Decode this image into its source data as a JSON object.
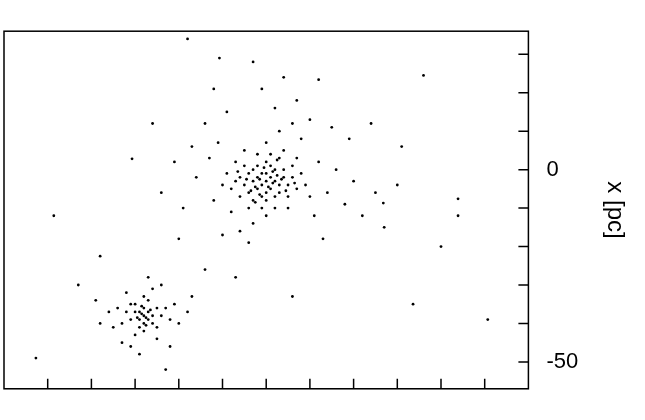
{
  "chart_data": {
    "type": "scatter",
    "ylabel": "x [pc]",
    "xlim": [
      -60,
      60
    ],
    "ylim": [
      -57,
      36
    ],
    "yticks": [
      -50,
      0
    ],
    "xminor_ticks": [
      -50,
      -40,
      -30,
      -20,
      -10,
      0,
      10,
      20,
      30,
      40,
      50
    ],
    "yminor_ticks": [
      -50,
      -40,
      -30,
      -20,
      -10,
      0,
      10,
      20,
      30
    ],
    "tick_labels": "y",
    "grid": false,
    "color": "#000000",
    "marker": "circle",
    "points": [
      [
        0,
        -3
      ],
      [
        1,
        -2
      ],
      [
        -1,
        -4
      ],
      [
        2,
        -3
      ],
      [
        -2,
        -2
      ],
      [
        0,
        -1
      ],
      [
        1,
        -5
      ],
      [
        -1,
        -1
      ],
      [
        3,
        -4
      ],
      [
        -3,
        -3
      ],
      [
        2,
        0
      ],
      [
        -2,
        -5
      ],
      [
        0,
        -6
      ],
      [
        4,
        -2
      ],
      [
        -4,
        -1
      ],
      [
        1,
        1
      ],
      [
        -1,
        -7
      ],
      [
        3,
        -6
      ],
      [
        -3,
        0
      ],
      [
        5,
        -4
      ],
      [
        -5,
        -4
      ],
      [
        2,
        -7
      ],
      [
        -2,
        1
      ],
      [
        4,
        0
      ],
      [
        -4,
        -6
      ],
      [
        6,
        -2
      ],
      [
        -6,
        -2
      ],
      [
        0,
        2
      ],
      [
        0,
        -8
      ],
      [
        5,
        -7
      ],
      [
        -5,
        1
      ],
      [
        3,
        3
      ],
      [
        -3,
        -8
      ],
      [
        7,
        -5
      ],
      [
        -7,
        -3
      ],
      [
        1,
        4
      ],
      [
        -1,
        -10
      ],
      [
        6,
        1
      ],
      [
        -6,
        -7
      ],
      [
        8,
        -1
      ],
      [
        -8,
        -5
      ],
      [
        2,
        -10
      ],
      [
        -2,
        4
      ],
      [
        9,
        -4
      ],
      [
        -9,
        -1
      ],
      [
        4,
        5
      ],
      [
        -4,
        -10
      ],
      [
        7,
        3
      ],
      [
        -7,
        2
      ],
      [
        5,
        -10
      ],
      [
        -5,
        5
      ],
      [
        10,
        -7
      ],
      [
        -10,
        -4
      ],
      [
        0,
        7
      ],
      [
        0,
        -12
      ],
      [
        1.5,
        -3.5
      ],
      [
        -1.5,
        -2.5
      ],
      [
        2.5,
        -1.5
      ],
      [
        -2.5,
        -4.5
      ],
      [
        0.5,
        -4.5
      ],
      [
        -0.5,
        0.5
      ],
      [
        3.5,
        -2.5
      ],
      [
        -3.5,
        -5.5
      ],
      [
        1.5,
        -0.5
      ],
      [
        -1.5,
        -6.5
      ],
      [
        4.5,
        -5.5
      ],
      [
        -4.5,
        -2.5
      ],
      [
        2.5,
        2.5
      ],
      [
        -2.5,
        -8.5
      ],
      [
        6.5,
        -3.5
      ],
      [
        -6.5,
        -0.5
      ],
      [
        12,
        2
      ],
      [
        -12,
        -8
      ],
      [
        8,
        8
      ],
      [
        -8,
        -11
      ],
      [
        14,
        -6
      ],
      [
        -13,
        3
      ],
      [
        3,
        10
      ],
      [
        -3,
        -14
      ],
      [
        11,
        -12
      ],
      [
        -11,
        7
      ],
      [
        16,
        0
      ],
      [
        -16,
        -2
      ],
      [
        6,
        12
      ],
      [
        -6,
        -16
      ],
      [
        18,
        -9
      ],
      [
        -17,
        6
      ],
      [
        10,
        13
      ],
      [
        -10,
        -17
      ],
      [
        20,
        -3
      ],
      [
        -19,
        -10
      ],
      [
        2,
        16
      ],
      [
        -4,
        -19
      ],
      [
        15,
        11
      ],
      [
        -14,
        12
      ],
      [
        22,
        -12
      ],
      [
        -21,
        2
      ],
      [
        7,
        18
      ],
      [
        -9,
        15
      ],
      [
        25,
        -6
      ],
      [
        13,
        -18
      ],
      [
        -24,
        -6
      ],
      [
        -1,
        21
      ],
      [
        19,
        8
      ],
      [
        27,
        -15
      ],
      [
        -12,
        21
      ],
      [
        4,
        24
      ],
      [
        30,
        -4
      ],
      [
        -26,
        12
      ],
      [
        24,
        12
      ],
      [
        -3,
        28
      ],
      [
        -28,
        -38
      ],
      [
        -27,
        -37
      ],
      [
        -29,
        -39
      ],
      [
        -26,
        -38
      ],
      [
        -30,
        -37
      ],
      [
        -28,
        -36
      ],
      [
        -28,
        -40
      ],
      [
        -27,
        -39
      ],
      [
        -29,
        -37
      ],
      [
        -25,
        -36
      ],
      [
        -31,
        -39
      ],
      [
        -26,
        -40
      ],
      [
        -30,
        -35
      ],
      [
        -27,
        -34
      ],
      [
        -29,
        -41
      ],
      [
        -24,
        -38
      ],
      [
        -32,
        -37
      ],
      [
        -25,
        -41
      ],
      [
        -31,
        -35
      ],
      [
        -28,
        -42
      ],
      [
        -28,
        -33
      ],
      [
        -23,
        -36
      ],
      [
        -33,
        -40
      ],
      [
        -22,
        -39
      ],
      [
        -34,
        -36
      ],
      [
        -26,
        -31
      ],
      [
        -30,
        -43
      ],
      [
        -21,
        -35
      ],
      [
        -35,
        -41
      ],
      [
        -25,
        -44
      ],
      [
        -32,
        -32
      ],
      [
        -20,
        -40
      ],
      [
        -36,
        -37
      ],
      [
        -24,
        -30
      ],
      [
        -31,
        -46
      ],
      [
        -18,
        -37
      ],
      [
        -38,
        -40
      ],
      [
        -27,
        -28
      ],
      [
        -29,
        -48
      ],
      [
        -17,
        -33
      ],
      [
        -39,
        -34
      ],
      [
        -22,
        -46
      ],
      [
        -27.5,
        -38.5
      ],
      [
        -28.5,
        -37.5
      ],
      [
        -26.5,
        -36.5
      ],
      [
        -29.5,
        -38.5
      ],
      [
        -27.5,
        -40.5
      ],
      [
        -28.5,
        -35.5
      ],
      [
        -18,
        34
      ],
      [
        12,
        23.4
      ],
      [
        36,
        24.5
      ],
      [
        -30.7,
        2.8
      ],
      [
        43.9,
        -7.6
      ],
      [
        43.9,
        -12
      ],
      [
        -48.6,
        -12
      ],
      [
        50.7,
        -39
      ],
      [
        -23,
        -52
      ],
      [
        -52.7,
        -49
      ],
      [
        33.6,
        -35
      ],
      [
        -7,
        -28
      ],
      [
        6,
        -33
      ],
      [
        -10.7,
        29
      ],
      [
        26.8,
        -8.7
      ],
      [
        -38,
        -22.5
      ],
      [
        -14,
        -26
      ],
      [
        -43,
        -30
      ],
      [
        31,
        6
      ],
      [
        40,
        -20
      ],
      [
        -20,
        -18
      ],
      [
        -33,
        -45
      ]
    ]
  }
}
